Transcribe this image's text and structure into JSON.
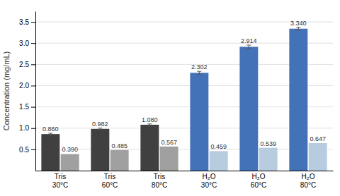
{
  "chart_data": {
    "type": "bar",
    "ylabel": "Concentration (mg/mL)",
    "categories": [
      "Tris\n30°C",
      "Tris\n60°C",
      "Tris\n80°C",
      "H₂O\n30°C",
      "H₂O\n60°C",
      "H₂O\n80°C"
    ],
    "series": [
      {
        "values": [
          0.86,
          0.982,
          1.08,
          2.302,
          2.914,
          3.34
        ],
        "value_labels": [
          "0.860",
          "0.982",
          "1.080",
          "2.302",
          "2.914",
          "3.340"
        ],
        "errors": [
          0.018,
          0.018,
          0.018,
          0.035,
          0.04,
          0.035
        ],
        "colors": [
          "#404040",
          "#404040",
          "#404040",
          "#4472b8",
          "#4472b8",
          "#4472b8"
        ]
      },
      {
        "values": [
          0.39,
          0.485,
          0.567,
          0.459,
          0.539,
          0.647
        ],
        "value_labels": [
          "0.390",
          "0.485",
          "0.567",
          "0.459",
          "0.539",
          "0.647"
        ],
        "colors": [
          "#a0a0a0",
          "#a0a0a0",
          "#a0a0a0",
          "#b8ccdf",
          "#b8ccdf",
          "#b8ccdf"
        ]
      }
    ],
    "ylim": [
      0,
      3.75
    ],
    "yticks": [
      0.5,
      {
        "value": 1.0,
        "label": "1.0"
      },
      1.5,
      {
        "value": 2.0,
        "label": "2.0"
      },
      2.5,
      {
        "value": 3.0,
        "label": "3.0"
      },
      3.5
    ],
    "grid": true,
    "data_labels": true
  }
}
